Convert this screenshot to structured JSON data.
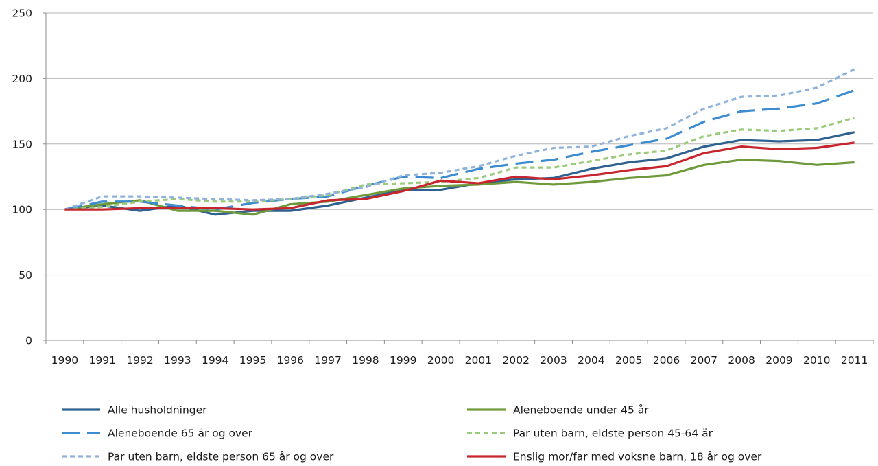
{
  "chart_data": {
    "type": "line",
    "title": "",
    "xlabel": "",
    "ylabel": "",
    "ylim": [
      0,
      250
    ],
    "yticks": [
      "0",
      "50",
      "100",
      "150",
      "200",
      "250"
    ],
    "categories": [
      "1990",
      "1991",
      "1992",
      "1993",
      "1994",
      "1995",
      "1996",
      "1997",
      "1998",
      "1999",
      "2000",
      "2001",
      "2002",
      "2003",
      "2004",
      "2005",
      "2006",
      "2007",
      "2008",
      "2009",
      "2010",
      "2011"
    ],
    "grid": "horizontal",
    "legend_position": "bottom",
    "series": [
      {
        "name": "Alle husholdninger",
        "color": "#2f6190",
        "dash": "solid",
        "values": [
          100,
          103,
          99,
          103,
          96,
          99,
          99,
          103,
          109,
          115,
          115,
          120,
          123,
          124,
          131,
          136,
          139,
          148,
          153,
          152,
          153,
          159
        ]
      },
      {
        "name": "Aleneboende under 45 år",
        "color": "#6e9a3b",
        "dash": "solid",
        "values": [
          100,
          104,
          107,
          99,
          99,
          96,
          104,
          106,
          111,
          116,
          118,
          119,
          121,
          119,
          121,
          124,
          126,
          134,
          138,
          137,
          134,
          136
        ]
      },
      {
        "name": "Aleneboende 65 år og over",
        "color": "#3d8cd0",
        "dash": "longdash",
        "values": [
          100,
          106,
          106,
          103,
          100,
          105,
          108,
          110,
          118,
          125,
          124,
          131,
          135,
          138,
          144,
          149,
          154,
          167,
          175,
          177,
          181,
          191
        ]
      },
      {
        "name": "Par uten barn, eldste person 45-64 år",
        "color": "#9acb7a",
        "dash": "shortdash",
        "values": [
          100,
          102,
          106,
          108,
          106,
          106,
          108,
          111,
          119,
          120,
          121,
          124,
          132,
          132,
          137,
          142,
          145,
          156,
          161,
          160,
          162,
          170
        ]
      },
      {
        "name": "Par uten barn, eldste person 65 år og over",
        "color": "#8fb3da",
        "dash": "shortdash",
        "values": [
          100,
          110,
          110,
          109,
          108,
          107,
          108,
          112,
          117,
          126,
          128,
          133,
          141,
          147,
          148,
          156,
          162,
          177,
          186,
          187,
          193,
          207
        ]
      },
      {
        "name": "Enslig mor/far med voksne barn, 18 år og over",
        "color": "#c8262e",
        "dash": "solid",
        "values": [
          100,
          100,
          101,
          101,
          101,
          100,
          101,
          107,
          108,
          114,
          122,
          120,
          125,
          123,
          126,
          130,
          133,
          143,
          148,
          146,
          147,
          151
        ]
      }
    ]
  }
}
